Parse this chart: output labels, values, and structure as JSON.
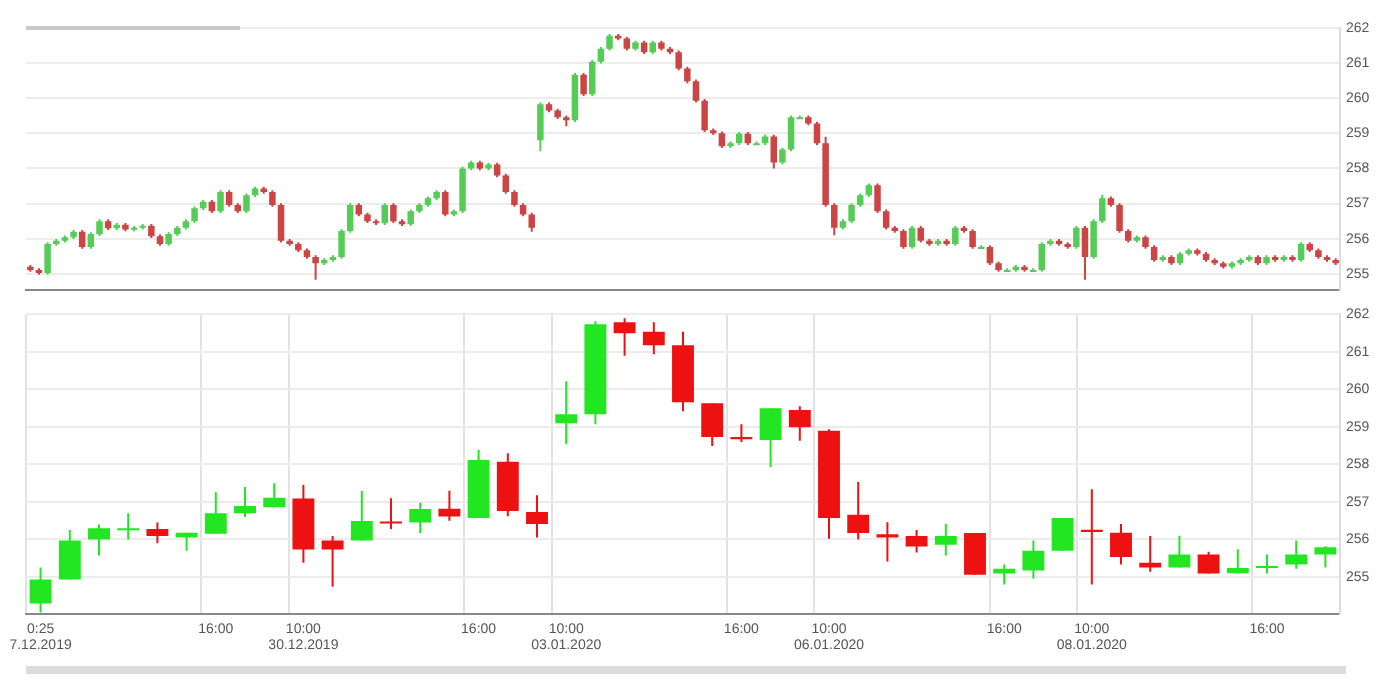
{
  "chart_data": [
    {
      "type": "candlestick",
      "tick_labels": "y",
      "grid": "y",
      "ylim": [
        254.55,
        262
      ],
      "yticks": [
        255,
        256,
        257,
        258,
        259,
        260,
        261,
        262
      ],
      "categories": [
        null,
        null,
        null,
        null,
        null,
        null,
        null,
        null,
        null,
        null,
        null,
        null,
        null,
        null,
        null,
        null,
        null,
        null,
        null,
        null,
        null,
        null,
        null,
        null,
        null,
        null,
        null,
        null,
        null,
        null,
        null,
        null,
        null,
        null,
        null,
        null,
        null,
        null,
        null,
        null,
        null,
        null,
        null,
        null,
        null,
        null,
        null,
        null,
        null,
        null,
        null,
        null,
        null,
        null,
        null,
        null,
        null,
        null,
        null,
        null,
        null,
        null,
        null,
        null,
        null,
        null,
        null,
        null,
        null,
        null,
        null,
        null,
        null,
        null,
        null,
        null,
        null,
        null,
        null,
        null,
        null,
        null,
        null,
        null,
        null,
        null,
        null,
        null,
        null,
        null,
        null,
        null,
        null,
        null,
        null,
        null,
        null,
        null,
        null,
        null,
        null,
        null,
        null,
        null,
        null,
        null,
        null,
        null,
        null,
        null,
        null,
        null,
        null,
        null,
        null,
        null,
        null,
        null,
        null,
        null,
        null,
        null,
        null,
        null,
        null,
        null,
        null,
        null,
        null,
        null,
        null,
        null,
        null,
        null,
        null,
        null,
        null,
        null,
        null,
        null,
        null,
        null,
        null,
        null,
        null,
        null,
        null,
        null,
        null,
        null,
        null,
        null
      ],
      "ohlc": [
        [
          255.2,
          255.25,
          255.06,
          255.11
        ],
        [
          255.11,
          255.16,
          254.97,
          255.02
        ],
        [
          255.02,
          255.9,
          254.97,
          255.85
        ],
        [
          255.85,
          255.99,
          255.8,
          255.94
        ],
        [
          255.94,
          256.09,
          255.89,
          256.04
        ],
        [
          256.04,
          256.25,
          255.99,
          256.2
        ],
        [
          256.2,
          256.25,
          255.71,
          255.76
        ],
        [
          255.76,
          256.18,
          255.71,
          256.13
        ],
        [
          256.13,
          256.55,
          256.08,
          256.5
        ],
        [
          256.5,
          256.55,
          256.25,
          256.3
        ],
        [
          256.3,
          256.45,
          256.25,
          256.4
        ],
        [
          256.4,
          256.45,
          256.21,
          256.26
        ],
        [
          256.26,
          256.36,
          256.21,
          256.31
        ],
        [
          256.31,
          256.42,
          256.26,
          256.37
        ],
        [
          256.37,
          256.42,
          256.02,
          256.07
        ],
        [
          256.07,
          256.12,
          255.8,
          255.85
        ],
        [
          255.85,
          256.18,
          255.8,
          256.13
        ],
        [
          256.13,
          256.36,
          256.08,
          256.31
        ],
        [
          256.31,
          256.55,
          256.26,
          256.5
        ],
        [
          256.5,
          256.92,
          256.45,
          256.87
        ],
        [
          256.87,
          257.1,
          256.82,
          257.05
        ],
        [
          257.05,
          257.1,
          256.73,
          256.78
        ],
        [
          256.78,
          257.38,
          256.73,
          257.33
        ],
        [
          257.33,
          257.38,
          256.91,
          256.96
        ],
        [
          256.96,
          257.01,
          256.73,
          256.78
        ],
        [
          256.78,
          257.29,
          256.73,
          257.24
        ],
        [
          257.24,
          257.48,
          257.19,
          257.43
        ],
        [
          257.43,
          257.48,
          257.28,
          257.33
        ],
        [
          257.33,
          257.38,
          256.91,
          256.96
        ],
        [
          256.96,
          257.01,
          255.89,
          255.94
        ],
        [
          255.94,
          255.99,
          255.8,
          255.85
        ],
        [
          255.85,
          255.9,
          255.62,
          255.67
        ],
        [
          255.67,
          255.72,
          255.43,
          255.48
        ],
        [
          255.48,
          255.53,
          254.83,
          255.3
        ],
        [
          255.3,
          255.44,
          255.25,
          255.39
        ],
        [
          255.39,
          255.53,
          255.34,
          255.48
        ],
        [
          255.48,
          256.27,
          255.43,
          256.22
        ],
        [
          256.22,
          257.01,
          256.17,
          256.96
        ],
        [
          256.96,
          257.01,
          256.64,
          256.69
        ],
        [
          256.69,
          256.74,
          256.45,
          256.5
        ],
        [
          256.5,
          256.55,
          256.39,
          256.44
        ],
        [
          256.44,
          257.01,
          256.39,
          256.96
        ],
        [
          256.96,
          257.01,
          256.45,
          256.5
        ],
        [
          256.5,
          256.55,
          256.36,
          256.41
        ],
        [
          256.41,
          256.83,
          256.36,
          256.78
        ],
        [
          256.78,
          257.01,
          256.73,
          256.96
        ],
        [
          256.96,
          257.2,
          256.91,
          257.15
        ],
        [
          257.15,
          257.38,
          257.1,
          257.33
        ],
        [
          257.33,
          257.38,
          256.64,
          256.69
        ],
        [
          256.69,
          256.83,
          256.64,
          256.78
        ],
        [
          256.78,
          258.05,
          256.73,
          258.0
        ],
        [
          258.0,
          258.22,
          257.95,
          258.17
        ],
        [
          258.17,
          258.22,
          257.95,
          258.0
        ],
        [
          258.0,
          258.16,
          257.95,
          258.11
        ],
        [
          258.11,
          258.16,
          257.75,
          257.8
        ],
        [
          257.8,
          257.85,
          257.28,
          257.33
        ],
        [
          257.33,
          257.38,
          256.91,
          256.96
        ],
        [
          256.96,
          257.01,
          256.64,
          256.69
        ],
        [
          256.69,
          256.74,
          256.2,
          256.31
        ],
        [
          258.8,
          259.88,
          258.5,
          259.83
        ],
        [
          259.83,
          259.88,
          259.6,
          259.65
        ],
        [
          259.65,
          259.7,
          259.41,
          259.46
        ],
        [
          259.46,
          259.51,
          259.2,
          259.37
        ],
        [
          259.37,
          260.72,
          259.32,
          260.67
        ],
        [
          260.67,
          260.72,
          260.06,
          260.11
        ],
        [
          260.11,
          261.09,
          260.06,
          261.04
        ],
        [
          261.04,
          261.46,
          260.99,
          261.41
        ],
        [
          261.41,
          261.83,
          261.36,
          261.78
        ],
        [
          261.78,
          261.83,
          261.65,
          261.7
        ],
        [
          261.7,
          261.75,
          261.36,
          261.41
        ],
        [
          261.41,
          261.64,
          261.36,
          261.59
        ],
        [
          261.59,
          261.64,
          261.26,
          261.31
        ],
        [
          261.31,
          261.64,
          261.26,
          261.59
        ],
        [
          261.59,
          261.64,
          261.36,
          261.41
        ],
        [
          261.41,
          261.46,
          261.26,
          261.31
        ],
        [
          261.31,
          261.36,
          260.8,
          260.85
        ],
        [
          260.85,
          260.9,
          260.43,
          260.48
        ],
        [
          260.48,
          260.53,
          259.88,
          259.93
        ],
        [
          259.93,
          259.98,
          259.04,
          259.09
        ],
        [
          259.09,
          259.14,
          258.95,
          259.0
        ],
        [
          259.0,
          259.05,
          258.58,
          258.63
        ],
        [
          258.63,
          258.77,
          258.58,
          258.72
        ],
        [
          258.72,
          259.04,
          258.67,
          258.99
        ],
        [
          258.99,
          259.04,
          258.67,
          258.72
        ],
        [
          258.72,
          258.77,
          258.67,
          258.72
        ],
        [
          258.72,
          258.96,
          258.67,
          258.91
        ],
        [
          258.91,
          258.96,
          258.0,
          258.17
        ],
        [
          258.17,
          258.59,
          258.12,
          258.54
        ],
        [
          258.54,
          259.51,
          258.49,
          259.46
        ],
        [
          259.46,
          259.51,
          259.41,
          259.46
        ],
        [
          259.46,
          259.51,
          259.23,
          259.28
        ],
        [
          259.28,
          259.33,
          258.67,
          258.72
        ],
        [
          258.72,
          258.9,
          256.91,
          256.96
        ],
        [
          256.96,
          257.01,
          256.1,
          256.31
        ],
        [
          256.31,
          256.55,
          256.26,
          256.5
        ],
        [
          256.5,
          257.01,
          256.45,
          256.96
        ],
        [
          256.96,
          257.29,
          256.91,
          257.24
        ],
        [
          257.24,
          257.57,
          257.19,
          257.52
        ],
        [
          257.52,
          257.57,
          256.73,
          256.78
        ],
        [
          256.78,
          256.83,
          256.26,
          256.31
        ],
        [
          256.31,
          256.36,
          256.17,
          256.22
        ],
        [
          256.22,
          256.27,
          255.71,
          255.76
        ],
        [
          255.76,
          256.36,
          255.71,
          256.31
        ],
        [
          256.31,
          256.36,
          255.89,
          255.94
        ],
        [
          255.94,
          255.99,
          255.8,
          255.85
        ],
        [
          255.85,
          255.99,
          255.8,
          255.94
        ],
        [
          255.94,
          255.99,
          255.8,
          255.85
        ],
        [
          255.85,
          256.36,
          255.8,
          256.31
        ],
        [
          256.31,
          256.36,
          256.17,
          256.22
        ],
        [
          256.22,
          256.27,
          255.71,
          255.76
        ],
        [
          255.76,
          255.81,
          255.71,
          255.76
        ],
        [
          255.76,
          255.81,
          255.25,
          255.3
        ],
        [
          255.3,
          255.35,
          255.06,
          255.11
        ],
        [
          255.11,
          255.16,
          255.06,
          255.11
        ],
        [
          255.11,
          255.25,
          255.06,
          255.2
        ],
        [
          255.2,
          255.25,
          255.06,
          255.11
        ],
        [
          255.11,
          255.16,
          255.06,
          255.11
        ],
        [
          255.11,
          255.9,
          255.06,
          255.85
        ],
        [
          255.85,
          255.99,
          255.8,
          255.94
        ],
        [
          255.94,
          255.99,
          255.8,
          255.85
        ],
        [
          255.85,
          255.9,
          255.71,
          255.76
        ],
        [
          255.76,
          256.36,
          255.71,
          256.31
        ],
        [
          256.31,
          256.36,
          254.83,
          255.48
        ],
        [
          255.48,
          256.55,
          255.43,
          256.5
        ],
        [
          256.5,
          257.25,
          256.45,
          257.15
        ],
        [
          257.15,
          257.2,
          256.91,
          256.96
        ],
        [
          256.96,
          257.01,
          256.17,
          256.22
        ],
        [
          256.22,
          256.27,
          255.89,
          255.94
        ],
        [
          255.94,
          256.09,
          255.89,
          256.04
        ],
        [
          256.04,
          256.09,
          255.71,
          255.76
        ],
        [
          255.76,
          255.81,
          255.34,
          255.39
        ],
        [
          255.39,
          255.53,
          255.34,
          255.48
        ],
        [
          255.48,
          255.53,
          255.25,
          255.3
        ],
        [
          255.3,
          255.62,
          255.25,
          255.57
        ],
        [
          255.57,
          255.72,
          255.52,
          255.67
        ],
        [
          255.67,
          255.72,
          255.52,
          255.57
        ],
        [
          255.57,
          255.62,
          255.34,
          255.39
        ],
        [
          255.39,
          255.44,
          255.25,
          255.3
        ],
        [
          255.3,
          255.35,
          255.15,
          255.2
        ],
        [
          255.2,
          255.35,
          255.15,
          255.3
        ],
        [
          255.3,
          255.44,
          255.25,
          255.39
        ],
        [
          255.39,
          255.53,
          255.34,
          255.48
        ],
        [
          255.48,
          255.53,
          255.25,
          255.3
        ],
        [
          255.3,
          255.53,
          255.25,
          255.48
        ],
        [
          255.48,
          255.53,
          255.34,
          255.39
        ],
        [
          255.39,
          255.53,
          255.34,
          255.48
        ],
        [
          255.48,
          255.53,
          255.34,
          255.39
        ],
        [
          255.39,
          255.9,
          255.34,
          255.85
        ],
        [
          255.85,
          255.9,
          255.62,
          255.67
        ],
        [
          255.67,
          255.72,
          255.43,
          255.48
        ],
        [
          255.48,
          255.53,
          255.34,
          255.39
        ],
        [
          255.39,
          255.44,
          255.25,
          255.3
        ]
      ],
      "colors": [
        "#cc4444",
        "#cc4444",
        "#55cc55",
        "#55cc55",
        "#55cc55",
        "#55cc55",
        "#cc4444",
        "#55cc55",
        "#55cc55",
        "#cc4444",
        "#55cc55",
        "#cc4444",
        "#55cc55",
        "#55cc55",
        "#cc4444",
        "#cc4444",
        "#55cc55",
        "#55cc55",
        "#55cc55",
        "#55cc55",
        "#55cc55",
        "#cc4444",
        "#55cc55",
        "#cc4444",
        "#cc4444",
        "#55cc55",
        "#55cc55",
        "#cc4444",
        "#cc4444",
        "#cc4444",
        "#cc4444",
        "#cc4444",
        "#cc4444",
        "#cc4444",
        "#55cc55",
        "#55cc55",
        "#55cc55",
        "#55cc55",
        "#cc4444",
        "#cc4444",
        "#cc4444",
        "#55cc55",
        "#cc4444",
        "#cc4444",
        "#55cc55",
        "#55cc55",
        "#55cc55",
        "#55cc55",
        "#cc4444",
        "#55cc55",
        "#55cc55",
        "#55cc55",
        "#cc4444",
        "#55cc55",
        "#cc4444",
        "#cc4444",
        "#cc4444",
        "#cc4444",
        "#cc4444",
        "#55cc55",
        "#cc4444",
        "#cc4444",
        "#cc4444",
        "#55cc55",
        "#cc4444",
        "#55cc55",
        "#55cc55",
        "#55cc55",
        "#cc4444",
        "#cc4444",
        "#55cc55",
        "#cc4444",
        "#55cc55",
        "#cc4444",
        "#cc4444",
        "#cc4444",
        "#cc4444",
        "#cc4444",
        "#cc4444",
        "#cc4444",
        "#cc4444",
        "#55cc55",
        "#55cc55",
        "#cc4444",
        "#55cc55",
        "#55cc55",
        "#cc4444",
        "#55cc55",
        "#55cc55",
        "#55cc55",
        "#cc4444",
        "#cc4444",
        "#cc4444",
        "#cc4444",
        "#55cc55",
        "#55cc55",
        "#55cc55",
        "#55cc55",
        "#cc4444",
        "#cc4444",
        "#cc4444",
        "#cc4444",
        "#55cc55",
        "#cc4444",
        "#cc4444",
        "#55cc55",
        "#cc4444",
        "#55cc55",
        "#cc4444",
        "#cc4444",
        "#55cc55",
        "#cc4444",
        "#cc4444",
        "#55cc55",
        "#55cc55",
        "#cc4444",
        "#55cc55",
        "#55cc55",
        "#55cc55",
        "#cc4444",
        "#cc4444",
        "#55cc55",
        "#cc4444",
        "#55cc55",
        "#55cc55",
        "#cc4444",
        "#cc4444",
        "#cc4444",
        "#55cc55",
        "#cc4444",
        "#cc4444",
        "#55cc55",
        "#cc4444",
        "#55cc55",
        "#55cc55",
        "#cc4444",
        "#cc4444",
        "#cc4444",
        "#cc4444",
        "#55cc55",
        "#55cc55",
        "#55cc55",
        "#cc4444",
        "#55cc55",
        "#cc4444",
        "#55cc55",
        "#cc4444",
        "#55cc55",
        "#cc4444",
        "#cc4444",
        "#cc4444",
        "#cc4444"
      ]
    },
    {
      "type": "candlestick",
      "grid": true,
      "ylim": [
        254,
        262
      ],
      "yticks": [
        255,
        256,
        257,
        258,
        259,
        260,
        261,
        262
      ],
      "categories": [
        "0:25\n7.12.2019",
        null,
        null,
        null,
        null,
        null,
        "16:00",
        null,
        null,
        "10:00\n30.12.2019",
        null,
        null,
        null,
        null,
        null,
        "16:00",
        null,
        null,
        "10:00\n03.01.2020",
        null,
        null,
        null,
        null,
        null,
        "16:00",
        null,
        null,
        "10:00\n06.01.2020",
        null,
        null,
        null,
        null,
        null,
        "16:00",
        null,
        null,
        "10:00\n08.01.2020",
        null,
        null,
        null,
        null,
        null,
        "16:00",
        null,
        null
      ],
      "ohlc": [
        [
          254.29,
          255.25,
          254.05,
          254.93
        ],
        [
          254.93,
          256.25,
          254.93,
          255.97
        ],
        [
          256.0,
          256.4,
          255.57,
          256.3
        ],
        [
          256.28,
          256.7,
          256.0,
          256.3
        ],
        [
          256.28,
          256.45,
          255.9,
          256.09
        ],
        [
          256.05,
          256.18,
          255.7,
          256.18
        ],
        [
          256.15,
          257.26,
          256.15,
          256.7
        ],
        [
          256.7,
          257.4,
          256.6,
          256.89
        ],
        [
          256.86,
          257.5,
          256.86,
          257.11
        ],
        [
          257.09,
          257.45,
          255.38,
          255.73
        ],
        [
          255.97,
          256.09,
          254.74,
          255.73
        ],
        [
          255.97,
          257.29,
          255.97,
          256.49
        ],
        [
          256.48,
          257.1,
          256.28,
          256.45
        ],
        [
          256.45,
          256.98,
          256.17,
          256.81
        ],
        [
          256.82,
          257.3,
          256.5,
          256.61
        ],
        [
          256.57,
          258.39,
          256.57,
          258.12
        ],
        [
          258.07,
          258.3,
          256.62,
          256.76
        ],
        [
          256.73,
          257.18,
          256.05,
          256.41
        ],
        [
          259.1,
          260.22,
          258.54,
          259.34
        ],
        [
          259.34,
          261.82,
          259.07,
          261.74
        ],
        [
          261.79,
          261.9,
          260.9,
          261.5
        ],
        [
          261.54,
          261.79,
          260.94,
          261.18
        ],
        [
          261.18,
          261.54,
          259.42,
          259.66
        ],
        [
          259.63,
          259.63,
          258.49,
          258.73
        ],
        [
          258.73,
          259.07,
          258.6,
          258.67
        ],
        [
          258.65,
          259.5,
          257.93,
          259.5
        ],
        [
          259.45,
          259.55,
          258.63,
          258.99
        ],
        [
          258.9,
          258.94,
          256.02,
          256.57
        ],
        [
          256.66,
          257.53,
          256.0,
          256.17
        ],
        [
          256.14,
          256.46,
          255.41,
          256.05
        ],
        [
          256.09,
          256.25,
          255.65,
          255.81
        ],
        [
          255.86,
          256.42,
          255.57,
          256.09
        ],
        [
          256.17,
          256.17,
          255.06,
          255.06
        ],
        [
          255.09,
          255.33,
          254.8,
          255.22
        ],
        [
          255.17,
          255.97,
          254.96,
          255.7
        ],
        [
          255.7,
          256.57,
          255.7,
          256.57
        ],
        [
          256.26,
          257.34,
          254.8,
          256.2
        ],
        [
          256.18,
          256.41,
          255.33,
          255.53
        ],
        [
          255.38,
          256.09,
          255.14,
          255.25
        ],
        [
          255.25,
          256.1,
          255.25,
          255.6
        ],
        [
          255.6,
          255.67,
          255.09,
          255.09
        ],
        [
          255.1,
          255.74,
          255.09,
          255.24
        ],
        [
          255.24,
          255.6,
          255.09,
          255.29
        ],
        [
          255.33,
          255.97,
          255.22,
          255.6
        ],
        [
          255.6,
          255.82,
          255.25,
          255.79
        ]
      ],
      "colors": [
        "#22e622",
        "#22e622",
        "#22e622",
        "#22e622",
        "#ee1111",
        "#22e622",
        "#22e622",
        "#22e622",
        "#22e622",
        "#ee1111",
        "#ee1111",
        "#22e622",
        "#ee1111",
        "#22e622",
        "#ee1111",
        "#22e622",
        "#ee1111",
        "#ee1111",
        "#22e622",
        "#22e622",
        "#ee1111",
        "#ee1111",
        "#ee1111",
        "#ee1111",
        "#ee1111",
        "#22e622",
        "#ee1111",
        "#ee1111",
        "#ee1111",
        "#ee1111",
        "#ee1111",
        "#22e622",
        "#ee1111",
        "#22e622",
        "#22e622",
        "#22e622",
        "#ee1111",
        "#ee1111",
        "#ee1111",
        "#22e622",
        "#ee1111",
        "#22e622",
        "#22e622",
        "#22e622",
        "#22e622"
      ]
    }
  ]
}
